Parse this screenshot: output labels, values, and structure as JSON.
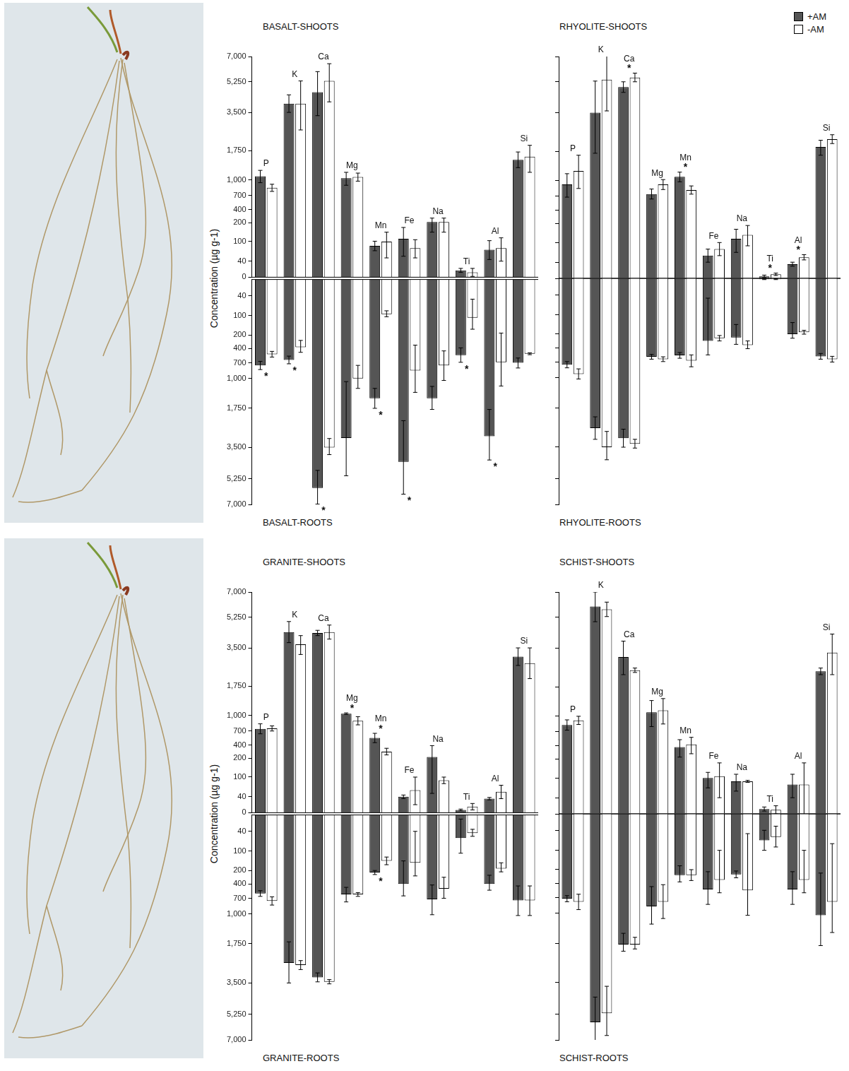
{
  "chart_data": [
    {
      "type": "bar",
      "title": "BASALT-SHOOTS",
      "ylabel": "Concentration (µg g-1)",
      "categories": [
        "P",
        "K",
        "Ca",
        "Mg",
        "Mn",
        "Fe",
        "Na",
        "Ti",
        "Al",
        "Si"
      ],
      "series": [
        {
          "name": "+AM",
          "color": "#555555",
          "values": [
            1100,
            4000,
            4650,
            1050,
            87,
            115,
            210,
            17,
            75,
            1520
          ],
          "errors": [
            150,
            500,
            1300,
            150,
            15,
            60,
            60,
            5,
            30,
            200
          ]
        },
        {
          "name": "-AM",
          "color": "#ffffff",
          "values": [
            850,
            4000,
            5300,
            1080,
            100,
            80,
            210,
            12,
            80,
            1600
          ],
          "errors": [
            70,
            1300,
            1200,
            100,
            50,
            30,
            60,
            10,
            40,
            400
          ]
        }
      ],
      "significant": [
        false,
        false,
        false,
        false,
        false,
        false,
        false,
        false,
        false,
        false
      ],
      "significance_mark": "*",
      "ylim": [
        0,
        7000
      ],
      "yticks": [
        0,
        40,
        100,
        200,
        400,
        700,
        {
          "value": 1000,
          "label": "1,000"
        },
        {
          "value": 1750,
          "label": "1,750"
        },
        {
          "value": 3500,
          "label": "3,500"
        },
        {
          "value": 5250,
          "label": "5,250"
        },
        {
          "value": 7000,
          "label": "7,000"
        }
      ],
      "tick_labels": "y"
    },
    {
      "type": "bar",
      "title": "BASALT-ROOTS",
      "categories": [
        null,
        null,
        null,
        null,
        null,
        null,
        null,
        null,
        null,
        null
      ],
      "series": [
        {
          "name": "+AM",
          "color": "#555555",
          "values": [
            750,
            640,
            5880,
            3080,
            1500,
            4300,
            1500,
            540,
            3000,
            700
          ],
          "errors": [
            80,
            80,
            1100,
            2000,
            250,
            2000,
            300,
            150,
            1200,
            100
          ]
        },
        {
          "name": "-AM",
          "color": "#ffffff",
          "values": [
            520,
            380,
            3500,
            1000,
            95,
            850,
            750,
            110,
            690,
            510
          ],
          "errors": [
            60,
            100,
            400,
            250,
            10,
            500,
            300,
            60,
            500,
            20
          ]
        }
      ],
      "significant": [
        true,
        true,
        true,
        false,
        true,
        true,
        false,
        true,
        true,
        false
      ],
      "significance_mark": "*",
      "ylim": [
        7000,
        0
      ],
      "yticks": [
        40,
        100,
        200,
        400,
        700,
        {
          "value": 1000,
          "label": "1,000"
        },
        {
          "value": 1750,
          "label": "1,750"
        },
        {
          "value": 3500,
          "label": "3,500"
        },
        {
          "value": 5250,
          "label": "5,250"
        },
        {
          "value": 7000,
          "label": "7,000"
        }
      ],
      "tick_labels": "y"
    },
    {
      "type": "bar",
      "title": "RHYOLITE-SHOOTS",
      "legend": "upper right",
      "categories": [
        "P",
        "K",
        "Ca",
        "Mg",
        "Mn",
        "Fe",
        "Na",
        "Ti",
        "Al",
        "Si"
      ],
      "series": [
        {
          "name": "+AM",
          "color": "#555555",
          "values": [
            930,
            3500,
            4950,
            740,
            1100,
            60,
            120,
            5,
            35,
            1950
          ],
          "errors": [
            250,
            1800,
            300,
            100,
            120,
            20,
            50,
            3,
            5,
            300
          ]
        },
        {
          "name": "-AM",
          "color": "#ffffff",
          "values": [
            1250,
            5400,
            5550,
            930,
            820,
            80,
            140,
            10,
            55,
            2300
          ],
          "errors": [
            400,
            1800,
            300,
            100,
            80,
            20,
            50,
            3,
            8,
            200
          ]
        }
      ],
      "significant": [
        false,
        false,
        true,
        false,
        true,
        false,
        false,
        true,
        true,
        false
      ],
      "significance_mark": "*",
      "ylim": [
        0,
        7000
      ],
      "yticks": [
        0,
        40,
        100,
        200,
        400,
        700,
        {
          "value": 1000,
          "label": "1,000"
        },
        {
          "value": 1750,
          "label": "1,750"
        },
        {
          "value": 3500,
          "label": "3,500"
        },
        {
          "value": 5250,
          "label": "5,250"
        },
        {
          "value": 7000,
          "label": "7,000"
        }
      ],
      "tick_labels": false
    },
    {
      "type": "bar",
      "title": "RHYOLITE-ROOTS",
      "categories": [
        null,
        null,
        null,
        null,
        null,
        null,
        null,
        null,
        null,
        null
      ],
      "series": [
        {
          "name": "+AM",
          "color": "#555555",
          "values": [
            750,
            2650,
            3100,
            590,
            560,
            300,
            250,
            2,
            200,
            580
          ],
          "errors": [
            60,
            500,
            400,
            50,
            60,
            250,
            100,
            1,
            60,
            60
          ]
        },
        {
          "name": "-AM",
          "color": "#ffffff",
          "values": [
            930,
            3500,
            3350,
            640,
            670,
            260,
            360,
            2,
            190,
            640
          ],
          "errors": [
            100,
            700,
            200,
            50,
            120,
            40,
            60,
            1,
            10,
            60
          ]
        }
      ],
      "significant": [
        false,
        false,
        false,
        false,
        false,
        false,
        false,
        false,
        false,
        false
      ],
      "significance_mark": "*",
      "ylim": [
        7000,
        0
      ],
      "yticks": [
        40,
        100,
        200,
        400,
        700,
        {
          "value": 1000,
          "label": "1,000"
        },
        {
          "value": 1750,
          "label": "1,750"
        },
        {
          "value": 3500,
          "label": "3,500"
        },
        {
          "value": 5250,
          "label": "5,250"
        },
        {
          "value": 7000,
          "label": "7,000"
        }
      ],
      "tick_labels": false
    },
    {
      "type": "bar",
      "title": "GRANITE-SHOOTS",
      "ylabel": "Concentration (µg g-1)",
      "categories": [
        "P",
        "K",
        "Ca",
        "Mg",
        "Mn",
        "Fe",
        "Na",
        "Ti",
        "Al",
        "Si"
      ],
      "series": [
        {
          "name": "+AM",
          "color": "#555555",
          "values": [
            740,
            4400,
            4350,
            1050,
            550,
            40,
            220,
            7,
            35,
            3100
          ],
          "errors": [
            100,
            600,
            150,
            20,
            100,
            5,
            170,
            2,
            3,
            400
          ]
        },
        {
          "name": "-AM",
          "color": "#ffffff",
          "values": [
            750,
            3700,
            4400,
            900,
            300,
            60,
            90,
            15,
            55,
            2800
          ],
          "errors": [
            50,
            500,
            400,
            80,
            50,
            40,
            10,
            8,
            20,
            700
          ]
        }
      ],
      "significant": [
        false,
        false,
        false,
        true,
        true,
        false,
        false,
        false,
        false,
        false
      ],
      "significance_mark": "*",
      "ylim": [
        0,
        7000
      ],
      "yticks": [
        0,
        40,
        100,
        200,
        400,
        700,
        {
          "value": 1000,
          "label": "1,000"
        },
        {
          "value": 1750,
          "label": "1,750"
        },
        {
          "value": 3500,
          "label": "3,500"
        },
        {
          "value": 5250,
          "label": "5,250"
        },
        {
          "value": 7000,
          "label": "7,000"
        }
      ],
      "tick_labels": "y"
    },
    {
      "type": "bar",
      "title": "GRANITE-ROOTS",
      "categories": [
        null,
        null,
        null,
        null,
        null,
        null,
        null,
        null,
        null,
        null
      ],
      "series": [
        {
          "name": "+AM",
          "color": "#555555",
          "values": [
            600,
            2600,
            3250,
            620,
            230,
            400,
            720,
            60,
            400,
            740
          ],
          "errors": [
            60,
            900,
            200,
            150,
            30,
            250,
            300,
            50,
            130,
            300
          ]
        },
        {
          "name": "-AM",
          "color": "#ffffff",
          "values": [
            750,
            2700,
            3450,
            620,
            150,
            160,
            500,
            45,
            190,
            740
          ],
          "errors": [
            80,
            200,
            100,
            40,
            20,
            120,
            200,
            10,
            30,
            300
          ]
        }
      ],
      "significant": [
        false,
        false,
        false,
        false,
        true,
        false,
        false,
        false,
        false,
        false
      ],
      "significance_mark": "*",
      "ylim": [
        7000,
        0
      ],
      "yticks": [
        40,
        100,
        200,
        400,
        700,
        {
          "value": 1000,
          "label": "1,000"
        },
        {
          "value": 1750,
          "label": "1,750"
        },
        {
          "value": 3500,
          "label": "3,500"
        },
        {
          "value": 5250,
          "label": "5,250"
        },
        {
          "value": 7000,
          "label": "7,000"
        }
      ],
      "tick_labels": "y"
    },
    {
      "type": "bar",
      "title": "SCHIST-SHOOTS",
      "categories": [
        "P",
        "K",
        "Ca",
        "Mg",
        "Mn",
        "Fe",
        "Na",
        "Ti",
        "Al",
        "Si"
      ],
      "series": [
        {
          "name": "+AM",
          "color": "#555555",
          "values": [
            830,
            6000,
            3100,
            1100,
            380,
            100,
            90,
            12,
            80,
            2450
          ],
          "errors": [
            100,
            1000,
            800,
            300,
            150,
            30,
            30,
            5,
            40,
            150
          ]
        },
        {
          "name": "-AM",
          "color": "#ffffff",
          "values": [
            920,
            5800,
            2500,
            1150,
            430,
            110,
            90,
            10,
            80,
            3300
          ],
          "errors": [
            80,
            500,
            100,
            300,
            150,
            70,
            3,
            10,
            100,
            1000
          ]
        }
      ],
      "significant": [
        false,
        false,
        false,
        false,
        false,
        false,
        false,
        false,
        false,
        false
      ],
      "significance_mark": "*",
      "ylim": [
        0,
        7000
      ],
      "yticks": [
        0,
        40,
        100,
        200,
        400,
        700,
        {
          "value": 1000,
          "label": "1,000"
        },
        {
          "value": 1750,
          "label": "1,750"
        },
        {
          "value": 3500,
          "label": "3,500"
        },
        {
          "value": 5250,
          "label": "5,250"
        },
        {
          "value": 7000,
          "label": "7,000"
        }
      ],
      "tick_labels": false
    },
    {
      "type": "bar",
      "title": "SCHIST-ROOTS",
      "categories": [
        null,
        null,
        null,
        null,
        null,
        null,
        null,
        null,
        null,
        null
      ],
      "series": [
        {
          "name": "+AM",
          "color": "#555555",
          "values": [
            720,
            5800,
            1800,
            870,
            280,
            530,
            270,
            70,
            530,
            1050
          ],
          "errors": [
            60,
            1500,
            300,
            400,
            100,
            300,
            50,
            30,
            300,
            800
          ]
        },
        {
          "name": "-AM",
          "color": "#ffffff",
          "values": [
            780,
            5200,
            1800,
            780,
            280,
            350,
            550,
            60,
            350,
            780
          ],
          "errors": [
            150,
            1500,
            200,
            350,
            80,
            250,
            500,
            30,
            250,
            700
          ]
        }
      ],
      "significant": [
        false,
        false,
        false,
        false,
        false,
        false,
        false,
        false,
        false,
        false
      ],
      "significance_mark": "*",
      "ylim": [
        7000,
        0
      ],
      "yticks": [
        40,
        100,
        200,
        400,
        700,
        {
          "value": 1000,
          "label": "1,000"
        },
        {
          "value": 1750,
          "label": "1,750"
        },
        {
          "value": 3500,
          "label": "3,500"
        },
        {
          "value": 5250,
          "label": "5,250"
        },
        {
          "value": 7000,
          "label": "7,000"
        }
      ],
      "tick_labels": false
    }
  ]
}
